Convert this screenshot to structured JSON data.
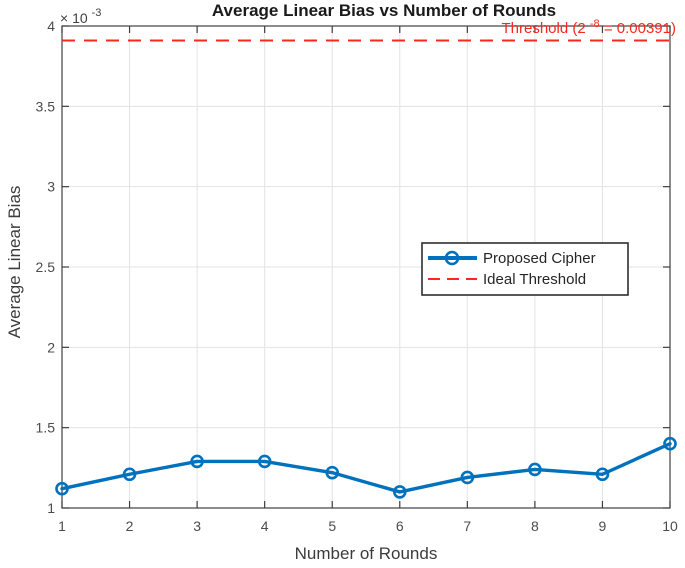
{
  "chart_data": {
    "type": "line",
    "title": "Average Linear Bias vs Number of Rounds",
    "xlabel": "Number of Rounds",
    "ylabel": "Average Linear Bias",
    "y_axis_multiplier": {
      "prefix": "× 10",
      "sup": "-3"
    },
    "x": [
      1,
      2,
      3,
      4,
      5,
      6,
      7,
      8,
      9,
      10
    ],
    "xlim": [
      1,
      10
    ],
    "ylim_x1e3": [
      1,
      4
    ],
    "x_ticks": [
      1,
      2,
      3,
      4,
      5,
      6,
      7,
      8,
      9,
      10
    ],
    "y_ticks_x1e3": [
      1,
      1.5,
      2,
      2.5,
      3,
      3.5,
      4
    ],
    "grid": true,
    "legend_position": "right-center",
    "series": [
      {
        "name": "Proposed Cipher",
        "color": "#0072BD",
        "style": "solid",
        "marker": "circle",
        "values_x1e3": [
          1.12,
          1.21,
          1.29,
          1.29,
          1.22,
          1.1,
          1.19,
          1.24,
          1.21,
          1.4
        ]
      },
      {
        "name": "Ideal Threshold",
        "color": "#f8281f",
        "style": "dashed",
        "value_x1e3": 3.91
      }
    ],
    "annotation": {
      "prefix": "Threshold (2",
      "sup": "-8",
      "suffix": " = 0.00391)",
      "full": "Threshold (2^-8 = 0.00391)"
    }
  },
  "colors": {
    "background": "#ffffff",
    "axis": "#3f3f3f",
    "grid": "#e3e3e3",
    "tick_label": "#4c4c4c",
    "title": "#1a1a1a",
    "legend_border": "#2e2e2e",
    "legend_text": "#262626"
  }
}
